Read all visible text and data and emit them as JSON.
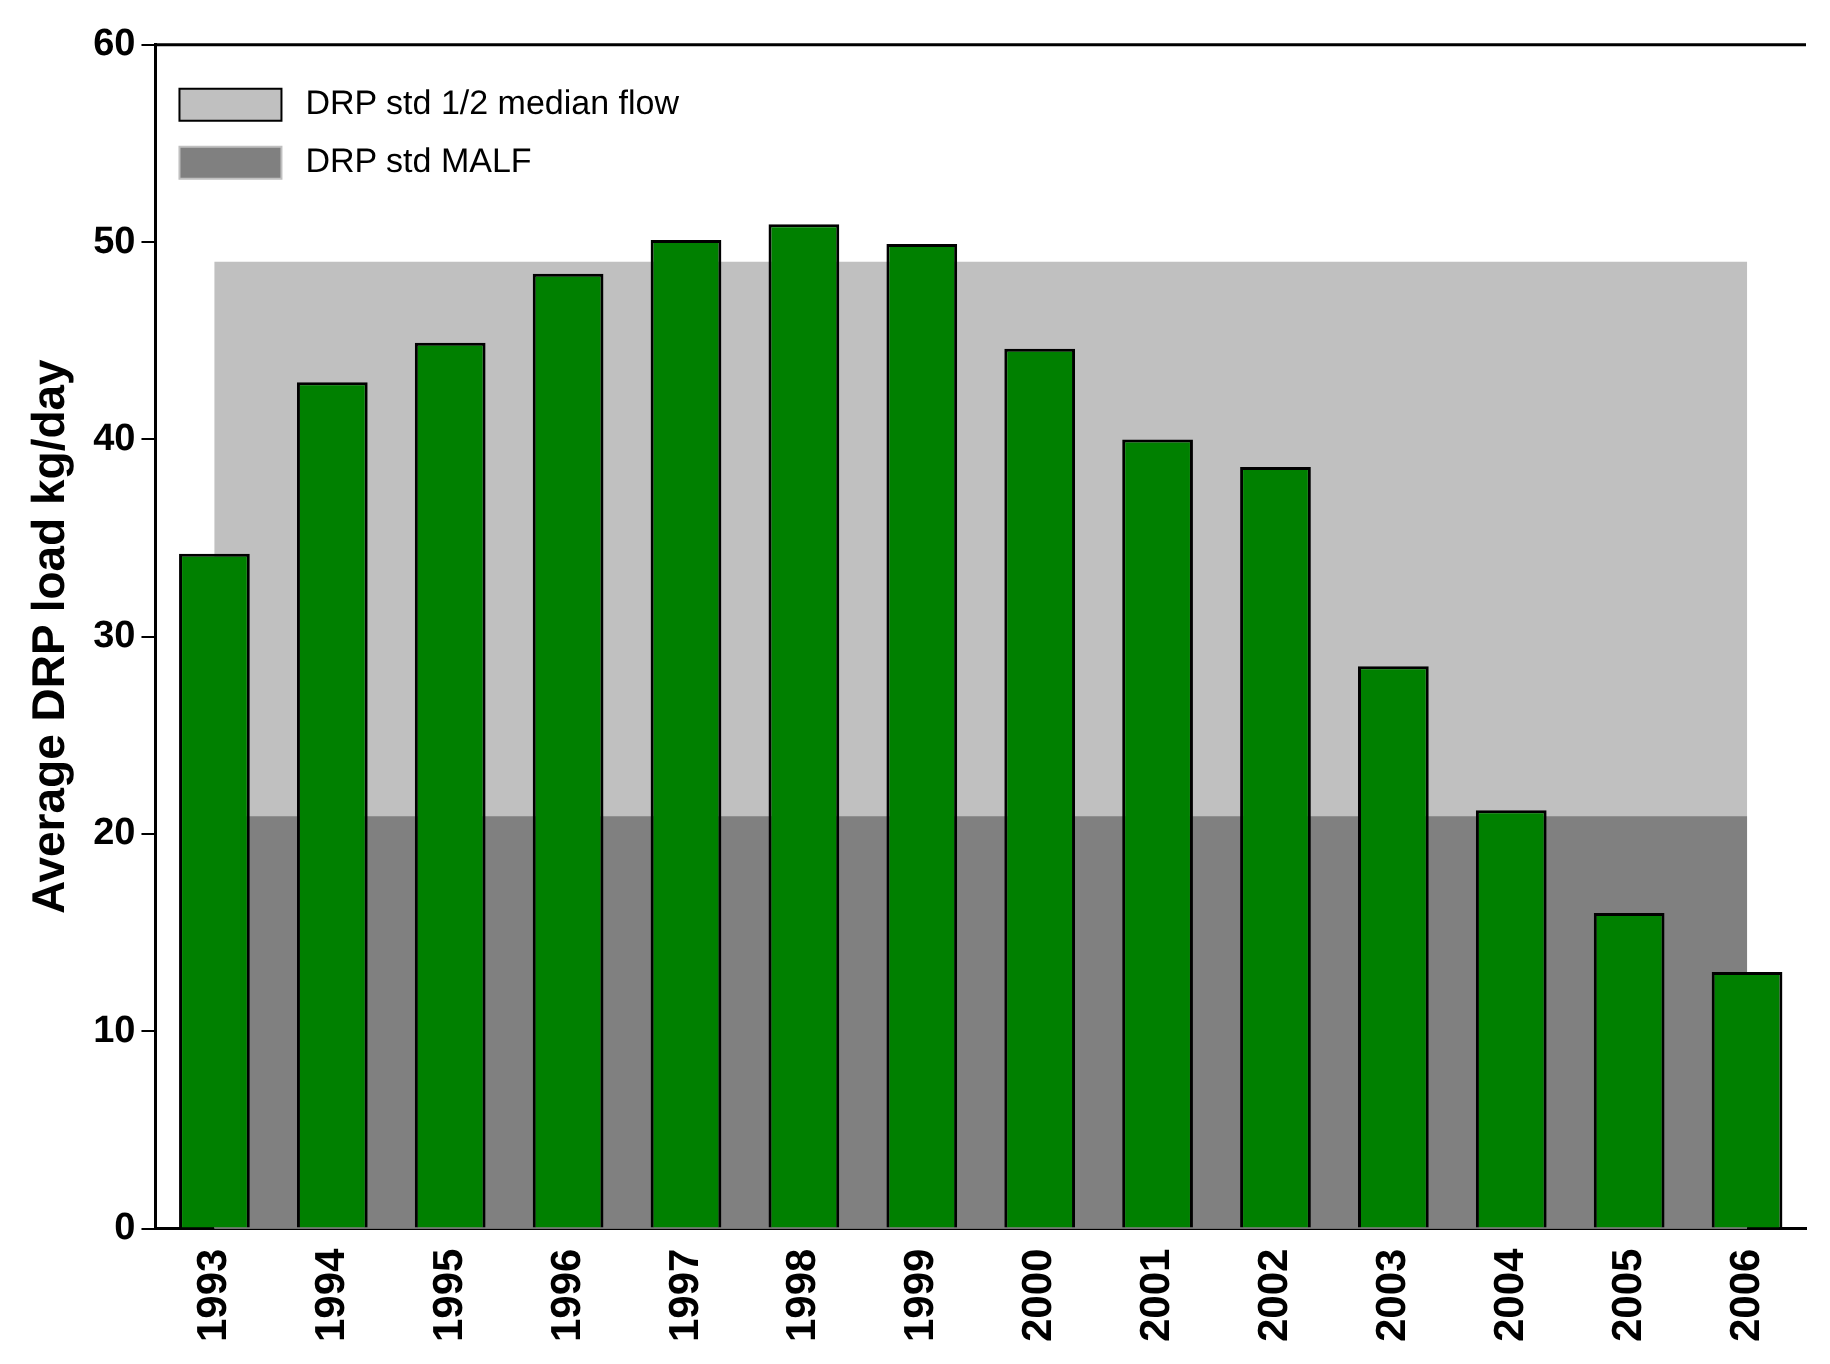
{
  "chart_data": {
    "type": "bar",
    "ylabel": "Average DRP load kg/day",
    "categories": [
      "1993",
      "1994",
      "1995",
      "1996",
      "1997",
      "1998",
      "1999",
      "2000",
      "2001",
      "2002",
      "2003",
      "2004",
      "2005",
      "2006"
    ],
    "values": [
      34.2,
      42.9,
      44.9,
      48.4,
      50.1,
      50.9,
      49.9,
      44.6,
      40.0,
      38.6,
      28.5,
      21.2,
      16.0,
      13.0
    ],
    "color": "#008000",
    "ylim": [
      0,
      60
    ],
    "yticks": [
      0,
      10,
      20,
      30,
      40,
      50,
      60
    ],
    "bands": [
      {
        "axis": "y",
        "from": 0,
        "to": 49,
        "label": "DRP std 1/2 median flow",
        "color": "#c0c0c0"
      },
      {
        "axis": "y",
        "from": 0,
        "to": 20.9,
        "label": "DRP std MALF",
        "color": "#808080"
      }
    ],
    "legend": "top left",
    "grid": false
  }
}
